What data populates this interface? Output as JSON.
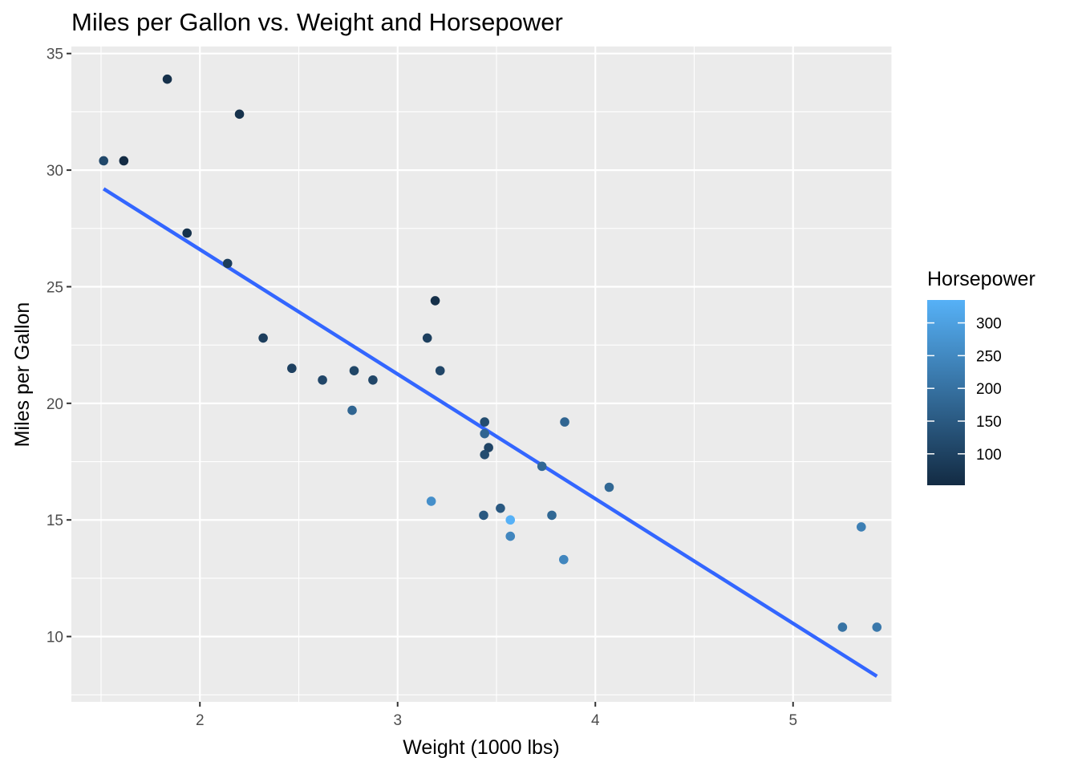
{
  "chart_data": {
    "type": "scatter",
    "title": "Miles per Gallon vs. Weight and Horsepower",
    "xlabel": "Weight (1000 lbs)",
    "ylabel": "Miles per Gallon",
    "xlim": [
      1.35,
      5.5
    ],
    "ylim": [
      7.2,
      35.3
    ],
    "x_ticks": [
      2,
      3,
      4,
      5
    ],
    "y_ticks": [
      10,
      15,
      20,
      25,
      30,
      35
    ],
    "x_tick_labels": [
      "2",
      "3",
      "4",
      "5"
    ],
    "y_tick_labels": [
      "10",
      "15",
      "20",
      "25",
      "30",
      "35"
    ],
    "grid": true,
    "legend": {
      "title": "Horsepower",
      "placement": "right",
      "type": "colorbar",
      "range": [
        52,
        335
      ],
      "ticks": [
        100,
        150,
        200,
        250,
        300
      ],
      "tick_labels": [
        "100",
        "150",
        "200",
        "250",
        "300"
      ],
      "color_low": "#132B43",
      "color_high": "#56B1F7"
    },
    "trend_line": {
      "method": "lm",
      "color": "#3366FF",
      "x": [
        1.513,
        5.424
      ],
      "y": [
        29.199,
        8.297
      ]
    },
    "points": [
      {
        "x": 2.62,
        "y": 21.0,
        "hp": 110
      },
      {
        "x": 2.875,
        "y": 21.0,
        "hp": 110
      },
      {
        "x": 2.32,
        "y": 22.8,
        "hp": 93
      },
      {
        "x": 3.215,
        "y": 21.4,
        "hp": 110
      },
      {
        "x": 3.44,
        "y": 18.7,
        "hp": 175
      },
      {
        "x": 3.46,
        "y": 18.1,
        "hp": 105
      },
      {
        "x": 3.57,
        "y": 14.3,
        "hp": 245
      },
      {
        "x": 3.19,
        "y": 24.4,
        "hp": 62
      },
      {
        "x": 3.15,
        "y": 22.8,
        "hp": 95
      },
      {
        "x": 3.44,
        "y": 19.2,
        "hp": 123
      },
      {
        "x": 3.44,
        "y": 17.8,
        "hp": 123
      },
      {
        "x": 4.07,
        "y": 16.4,
        "hp": 180
      },
      {
        "x": 3.73,
        "y": 17.3,
        "hp": 180
      },
      {
        "x": 3.78,
        "y": 15.2,
        "hp": 180
      },
      {
        "x": 5.25,
        "y": 10.4,
        "hp": 205
      },
      {
        "x": 5.424,
        "y": 10.4,
        "hp": 215
      },
      {
        "x": 5.345,
        "y": 14.7,
        "hp": 230
      },
      {
        "x": 2.2,
        "y": 32.4,
        "hp": 66
      },
      {
        "x": 1.615,
        "y": 30.4,
        "hp": 52
      },
      {
        "x": 1.835,
        "y": 33.9,
        "hp": 65
      },
      {
        "x": 2.465,
        "y": 21.5,
        "hp": 97
      },
      {
        "x": 3.52,
        "y": 15.5,
        "hp": 150
      },
      {
        "x": 3.435,
        "y": 15.2,
        "hp": 150
      },
      {
        "x": 3.84,
        "y": 13.3,
        "hp": 245
      },
      {
        "x": 3.845,
        "y": 19.2,
        "hp": 175
      },
      {
        "x": 1.935,
        "y": 27.3,
        "hp": 66
      },
      {
        "x": 2.14,
        "y": 26.0,
        "hp": 91
      },
      {
        "x": 1.513,
        "y": 30.4,
        "hp": 113
      },
      {
        "x": 3.17,
        "y": 15.8,
        "hp": 264
      },
      {
        "x": 2.77,
        "y": 19.7,
        "hp": 175
      },
      {
        "x": 3.57,
        "y": 15.0,
        "hp": 335
      },
      {
        "x": 2.78,
        "y": 21.4,
        "hp": 109
      }
    ]
  }
}
